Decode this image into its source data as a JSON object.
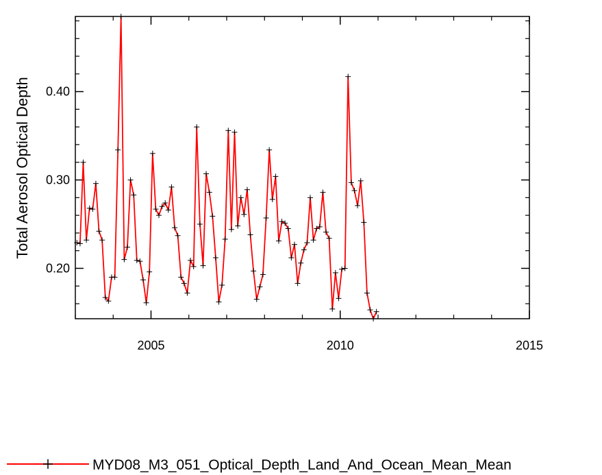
{
  "chart_data": {
    "type": "line",
    "title": "",
    "xlabel": "",
    "ylabel": "Total Aerosol Optical Depth",
    "xlim": [
      2003.0,
      2015.0
    ],
    "ylim": [
      0.143,
      0.485
    ],
    "x_ticks": [
      2005,
      2010,
      2015
    ],
    "x_tick_labels": [
      "2005",
      "2010",
      "2015"
    ],
    "y_ticks": [
      0.2,
      0.3,
      0.4
    ],
    "y_tick_labels": [
      "0.20",
      "0.30",
      "0.40"
    ],
    "grid": false,
    "legend_position": "bottom",
    "series": [
      {
        "name": "MYD08_M3_051_Optical_Depth_Land_And_Ocean_Mean_Mean",
        "color": "#ff0000",
        "marker": "plus",
        "x": [
          2003.042,
          2003.125,
          2003.208,
          2003.292,
          2003.375,
          2003.458,
          2003.542,
          2003.625,
          2003.708,
          2003.792,
          2003.875,
          2003.958,
          2004.042,
          2004.125,
          2004.208,
          2004.292,
          2004.375,
          2004.458,
          2004.542,
          2004.625,
          2004.708,
          2004.792,
          2004.875,
          2004.958,
          2005.042,
          2005.125,
          2005.208,
          2005.292,
          2005.375,
          2005.458,
          2005.542,
          2005.625,
          2005.708,
          2005.792,
          2005.875,
          2005.958,
          2006.042,
          2006.125,
          2006.208,
          2006.292,
          2006.375,
          2006.458,
          2006.542,
          2006.625,
          2006.708,
          2006.792,
          2006.875,
          2006.958,
          2007.042,
          2007.125,
          2007.208,
          2007.292,
          2007.375,
          2007.458,
          2007.542,
          2007.625,
          2007.708,
          2007.792,
          2007.875,
          2007.958,
          2008.042,
          2008.125,
          2008.208,
          2008.292,
          2008.375,
          2008.458,
          2008.542,
          2008.625,
          2008.708,
          2008.792,
          2008.875,
          2008.958,
          2009.042,
          2009.125,
          2009.208,
          2009.292,
          2009.375,
          2009.458,
          2009.542,
          2009.625,
          2009.708,
          2009.792,
          2009.875,
          2009.958,
          2010.042,
          2010.125,
          2010.208,
          2010.292,
          2010.375,
          2010.458,
          2010.542,
          2010.625,
          2010.708,
          2010.792,
          2010.875,
          2010.958
        ],
        "values": [
          0.229,
          0.228,
          0.32,
          0.232,
          0.268,
          0.267,
          0.296,
          0.242,
          0.232,
          0.167,
          0.163,
          0.19,
          0.19,
          0.334,
          0.485,
          0.21,
          0.224,
          0.3,
          0.283,
          0.209,
          0.208,
          0.187,
          0.161,
          0.196,
          0.33,
          0.267,
          0.26,
          0.27,
          0.274,
          0.266,
          0.292,
          0.246,
          0.237,
          0.19,
          0.183,
          0.172,
          0.209,
          0.202,
          0.36,
          0.25,
          0.203,
          0.307,
          0.286,
          0.259,
          0.212,
          0.162,
          0.181,
          0.233,
          0.356,
          0.244,
          0.354,
          0.248,
          0.28,
          0.261,
          0.289,
          0.238,
          0.197,
          0.165,
          0.179,
          0.193,
          0.257,
          0.334,
          0.278,
          0.304,
          0.231,
          0.253,
          0.251,
          0.245,
          0.212,
          0.227,
          0.183,
          0.206,
          0.221,
          0.229,
          0.28,
          0.232,
          0.245,
          0.247,
          0.286,
          0.241,
          0.234,
          0.154,
          0.195,
          0.166,
          0.199,
          0.2,
          0.417,
          0.297,
          0.288,
          0.271,
          0.299,
          0.252,
          0.172,
          0.153,
          0.143,
          0.151
        ]
      }
    ]
  }
}
